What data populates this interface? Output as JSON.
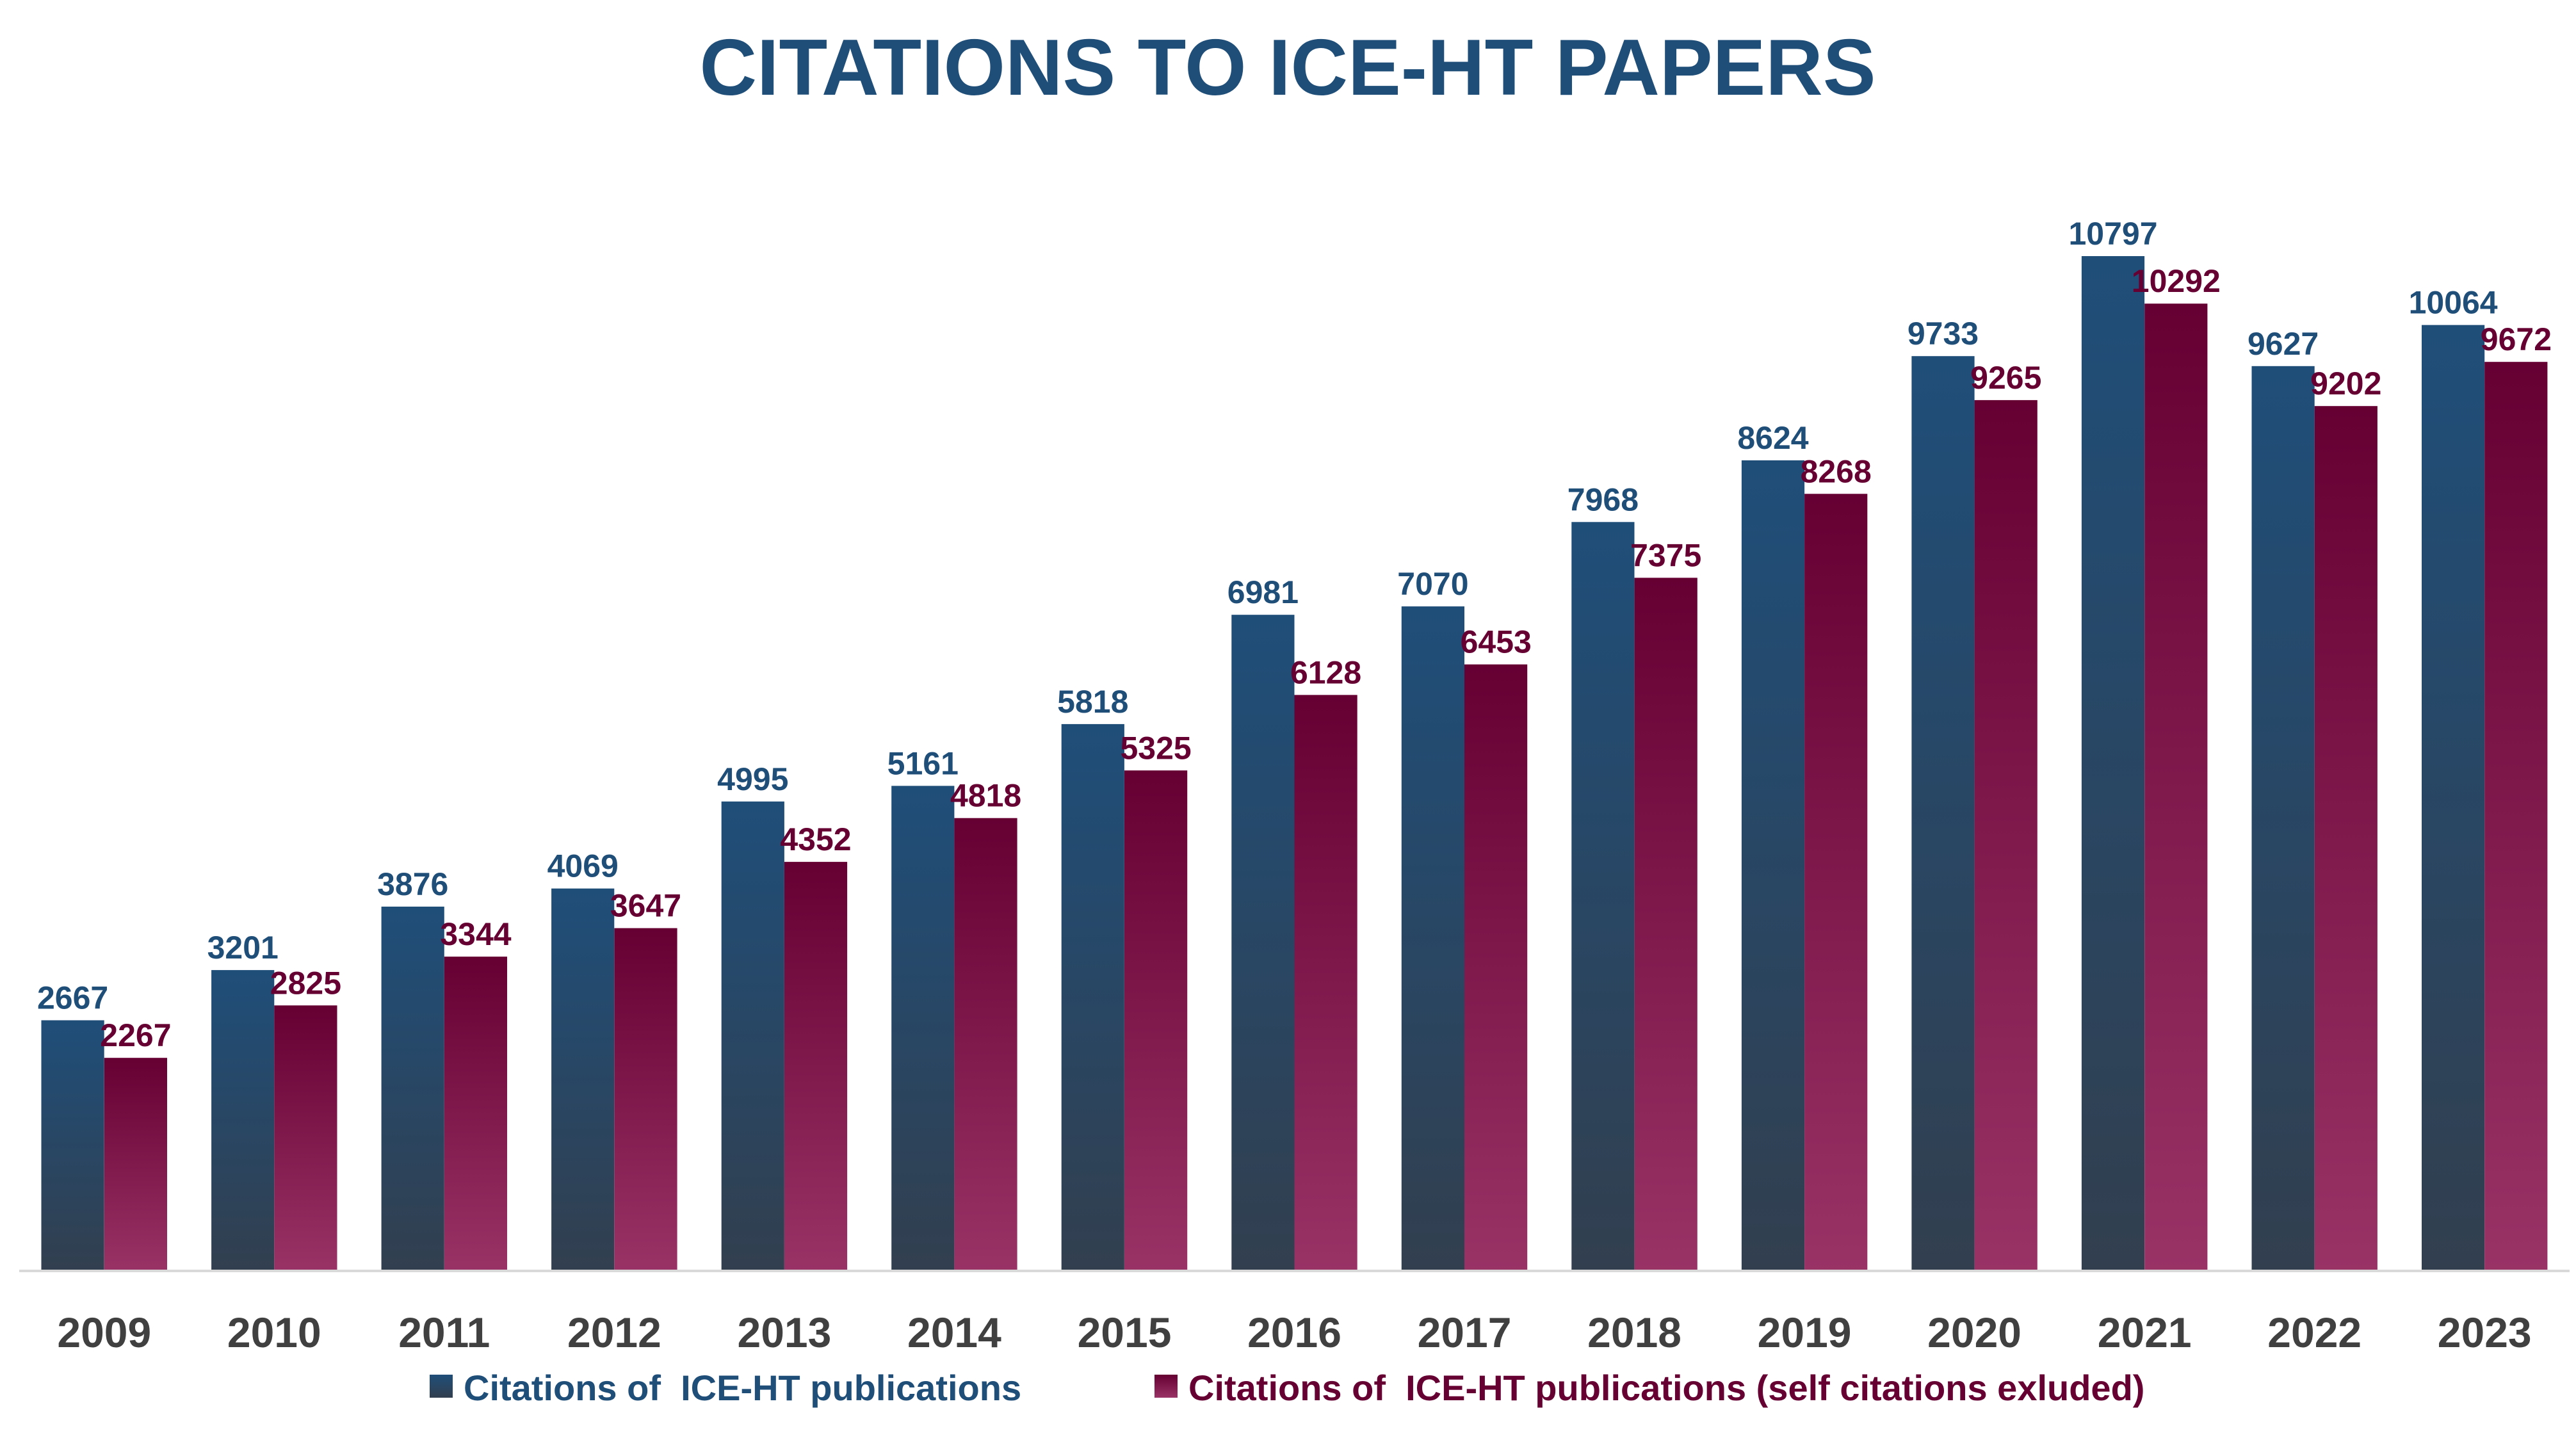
{
  "chart_data": {
    "type": "bar",
    "title": "CITATIONS TO ICE-HT PAPERS",
    "xlabel": "",
    "ylabel": "",
    "ylim": [
      0,
      12000
    ],
    "grid": false,
    "legend_position": "bottom",
    "categories": [
      "2009",
      "2010",
      "2011",
      "2012",
      "2013",
      "2014",
      "2015",
      "2016",
      "2017",
      "2018",
      "2019",
      "2020",
      "2021",
      "2022",
      "2023"
    ],
    "series": [
      {
        "name": "Citations of  ICE-HT publications",
        "values": [
          2667,
          3201,
          3876,
          4069,
          4995,
          5161,
          5818,
          6981,
          7070,
          7968,
          8624,
          9733,
          10797,
          9627,
          10064
        ],
        "color_top": "#1f4e79",
        "color_bottom": "#323f4f",
        "label_color": "#1f4e79"
      },
      {
        "name": "Citations of  ICE-HT publications (self citations exluded)",
        "values": [
          2267,
          2825,
          3344,
          3647,
          4352,
          4818,
          5325,
          6128,
          6453,
          7375,
          8268,
          9265,
          10292,
          9202,
          9672
        ],
        "color_top": "#660033",
        "color_bottom": "#993366",
        "label_color": "#660033"
      }
    ],
    "colors": {
      "title": "#1f4e79",
      "tick_labels": "#404040",
      "axis_line": "#d9d9d9"
    }
  }
}
